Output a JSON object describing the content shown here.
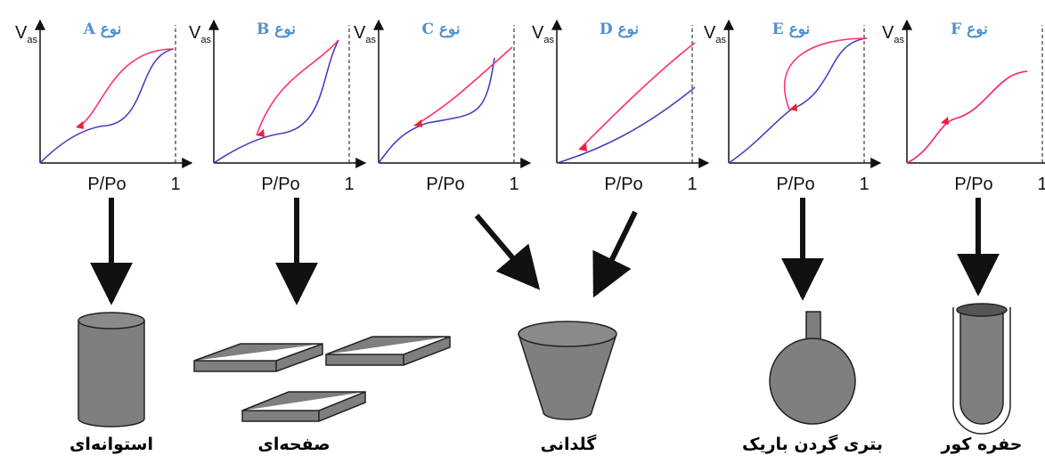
{
  "panels": [
    {
      "title": "نوع A",
      "y_label": "V",
      "y_sub": "as",
      "x_label": "P/Po",
      "x_end": "1"
    },
    {
      "title": "نوع B",
      "y_label": "V",
      "y_sub": "as",
      "x_label": "P/Po",
      "x_end": "1"
    },
    {
      "title": "نوع C",
      "y_label": "V",
      "y_sub": "as",
      "x_label": "P/Po",
      "x_end": "1"
    },
    {
      "title": "نوع D",
      "y_label": "V",
      "y_sub": "as",
      "x_label": "P/Po",
      "x_end": "1"
    },
    {
      "title": "نوع E",
      "y_label": "V",
      "y_sub": "as",
      "x_label": "P/Po",
      "x_end": "1"
    },
    {
      "title": "نوع F",
      "y_label": "V",
      "y_sub": "as",
      "x_label": "P/Po",
      "x_end": "1"
    }
  ],
  "shapes": [
    {
      "label": "استوانه‌ای"
    },
    {
      "label": "صفحه‌ای"
    },
    {
      "label": "گلدانی"
    },
    {
      "label": "بتری گردن باریک"
    },
    {
      "label": "حفره کور"
    }
  ]
}
